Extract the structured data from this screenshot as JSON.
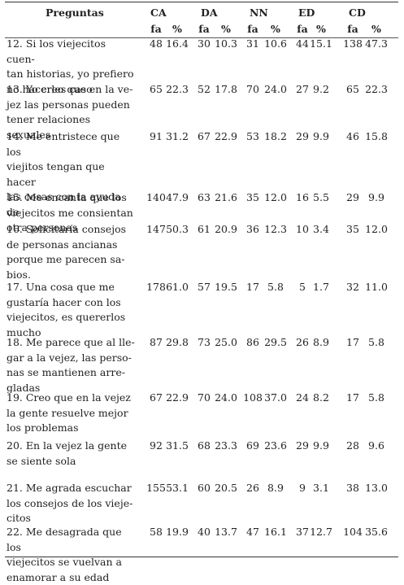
{
  "table": {
    "header": {
      "preguntas": "Preguntas",
      "groups": [
        "CA",
        "DA",
        "NN",
        "ED",
        "CD"
      ],
      "sub": [
        "fa",
        "%",
        "fa",
        "%",
        "fa",
        "%",
        "fa",
        "%",
        "fa",
        "%"
      ]
    },
    "rows": [
      {
        "lines": [
          "12. Si los viejecitos cuen-",
          "tan historias, yo prefiero",
          "no hacerles caso"
        ],
        "values": [
          "48",
          "16.4",
          "30",
          "10.3",
          "31",
          "10.6",
          "44",
          "15.1",
          "138",
          "47.3"
        ]
      },
      {
        "lines": [
          "13. Yo creo que en la ve-",
          "jez las personas pueden",
          "tener relaciones sexuales"
        ],
        "values": [
          "65",
          "22.3",
          "52",
          "17.8",
          "70",
          "24.0",
          "27",
          "9.2",
          "65",
          "22.3"
        ]
      },
      {
        "lines": [
          "14. Me entristece que los",
          "viejitos tengan que hacer",
          "las cosas con la ayuda de",
          "otra personas"
        ],
        "values": [
          "91",
          "31.2",
          "67",
          "22.9",
          "53",
          "18.2",
          "29",
          "9.9",
          "46",
          "15.8"
        ]
      },
      {
        "lines": [
          "15. Me encanta que los",
          "viejecitos me consientan"
        ],
        "values": [
          "140",
          "47.9",
          "63",
          "21.6",
          "35",
          "12.0",
          "16",
          "5.5",
          "29",
          "9.9"
        ]
      },
      {
        "lines": [
          "16. Solicitaría consejos",
          "de personas ancianas",
          "porque me parecen sa-",
          "bios."
        ],
        "values": [
          "147",
          "50.3",
          "61",
          "20.9",
          "36",
          "12.3",
          "10",
          "3.4",
          "35",
          "12.0"
        ]
      },
      {
        "lines": [
          "17. Una cosa que me",
          "gustaría hacer con los",
          "viejecitos, es quererlos",
          "mucho"
        ],
        "values": [
          "178",
          "61.0",
          "57",
          "19.5",
          "17",
          "5.8",
          "5",
          "1.7",
          "32",
          "11.0"
        ]
      },
      {
        "lines": [
          "18. Me parece que al lle-",
          "gar a la vejez, las perso-",
          "nas se mantienen arre-",
          "gladas"
        ],
        "values": [
          "87",
          "29.8",
          "73",
          "25.0",
          "86",
          "29.5",
          "26",
          "8.9",
          "17",
          "5.8"
        ]
      },
      {
        "lines": [
          "19. Creo que en la vejez",
          "la gente resuelve mejor",
          "los problemas"
        ],
        "values": [
          "67",
          "22.9",
          "70",
          "24.0",
          "108",
          "37.0",
          "24",
          "8.2",
          "17",
          "5.8"
        ]
      },
      {
        "lines": [
          "20. En la vejez la gente",
          "se siente sola"
        ],
        "values": [
          "92",
          "31.5",
          "68",
          "23.3",
          "69",
          "23.6",
          "29",
          "9.9",
          "28",
          "9.6"
        ]
      },
      {
        "lines": [
          "21. Me agrada escuchar",
          "los consejos de los vieje-",
          "citos"
        ],
        "values": [
          "155",
          "53.1",
          "60",
          "20.5",
          "26",
          "8.9",
          "9",
          "3.1",
          "38",
          "13.0"
        ]
      },
      {
        "lines": [
          "22. Me desagrada que los",
          "viejecitos se vuelvan a",
          "enamorar a su edad"
        ],
        "values": [
          "58",
          "19.9",
          "40",
          "13.7",
          "47",
          "16.1",
          "37",
          "12.7",
          "104",
          "35.6"
        ]
      }
    ]
  }
}
